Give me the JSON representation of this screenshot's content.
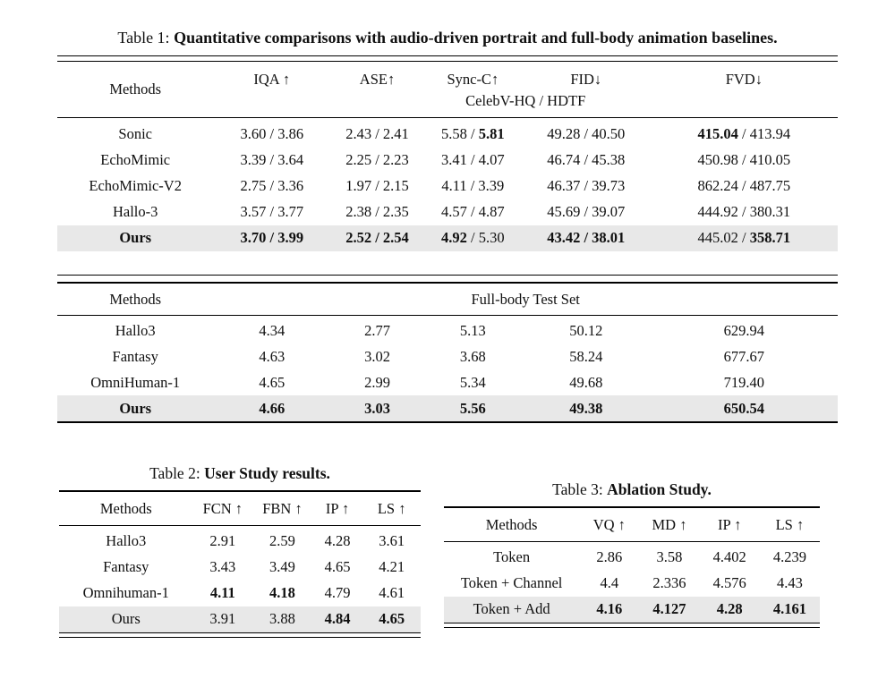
{
  "colors": {
    "highlight_row": "#e8e8e8",
    "text": "#101010",
    "rule": "#000000"
  },
  "table1": {
    "caption_prefix": "Table 1: ",
    "caption_bold": "Quantitative comparisons with audio-driven portrait and full-body animation baselines.",
    "portrait": {
      "methods_header": "Methods",
      "columns": [
        "IQA ↑",
        "ASE↑",
        "Sync-C↑",
        "FID↓",
        "FVD↓"
      ],
      "subheader": "CelebV-HQ / HDTF",
      "rows": [
        {
          "method": "Sonic",
          "cells": [
            "3.60 / 3.86",
            "2.43 / 2.41",
            "5.58 / **5.81**",
            "49.28 / 40.50",
            "**415.04** / 413.94"
          ]
        },
        {
          "method": "EchoMimic",
          "cells": [
            "3.39 / 3.64",
            "2.25 / 2.23",
            "3.41 / 4.07",
            "46.74 / 45.38",
            "450.98 / 410.05"
          ]
        },
        {
          "method": "EchoMimic-V2",
          "cells": [
            "2.75 / 3.36",
            "1.97 / 2.15",
            "4.11 / 3.39",
            "46.37 / 39.73",
            "862.24 / 487.75"
          ]
        },
        {
          "method": "Hallo-3",
          "cells": [
            "3.57 / 3.77",
            "2.38 / 2.35",
            "4.57 / 4.87",
            "45.69 / 39.07",
            "444.92 / 380.31"
          ]
        },
        {
          "method": "**Ours**",
          "cells": [
            "**3.70 / 3.99**",
            "**2.52 / 2.54**",
            "**4.92** / 5.30",
            "**43.42 / 38.01**",
            "445.02 / **358.71**"
          ]
        }
      ]
    },
    "fullbody": {
      "methods_header": "Methods",
      "header_span": "Full-body Test Set",
      "rows": [
        {
          "method": "Hallo3",
          "cells": [
            "4.34",
            "2.77",
            "5.13",
            "50.12",
            "629.94"
          ]
        },
        {
          "method": "Fantasy",
          "cells": [
            "4.63",
            "3.02",
            "3.68",
            "58.24",
            "677.67"
          ]
        },
        {
          "method": "OmniHuman-1",
          "cells": [
            "4.65",
            "2.99",
            "5.34",
            "49.68",
            "719.40"
          ]
        },
        {
          "method": "**Ours**",
          "cells": [
            "**4.66**",
            "**3.03**",
            "**5.56**",
            "**49.38**",
            "**650.54**"
          ]
        }
      ]
    }
  },
  "table2": {
    "caption_prefix": "Table 2: ",
    "caption_bold": "User Study results.",
    "columns": [
      "Methods",
      "FCN ↑",
      "FBN ↑",
      "IP ↑",
      "LS ↑"
    ],
    "rows": [
      {
        "method": "Hallo3",
        "cells": [
          "2.91",
          "2.59",
          "4.28",
          "3.61"
        ]
      },
      {
        "method": "Fantasy",
        "cells": [
          "3.43",
          "3.49",
          "4.65",
          "4.21"
        ]
      },
      {
        "method": "Omnihuman-1",
        "cells": [
          "**4.11**",
          "**4.18**",
          "4.79",
          "4.61"
        ]
      },
      {
        "method": "Ours",
        "cells": [
          "3.91",
          "3.88",
          "**4.84**",
          "**4.65**"
        ]
      }
    ]
  },
  "table3": {
    "caption_prefix": "Table 3: ",
    "caption_bold": "Ablation Study.",
    "columns": [
      "Methods",
      "VQ ↑",
      "MD ↑",
      "IP ↑",
      "LS ↑"
    ],
    "rows": [
      {
        "method": "Token",
        "cells": [
          "2.86",
          "3.58",
          "4.402",
          "4.239"
        ]
      },
      {
        "method": "Token + Channel",
        "cells": [
          "4.4",
          "2.336",
          "4.576",
          "4.43"
        ]
      },
      {
        "method": "Token + Add",
        "cells": [
          "**4.16**",
          "**4.127**",
          "**4.28**",
          "**4.161**"
        ]
      }
    ]
  }
}
